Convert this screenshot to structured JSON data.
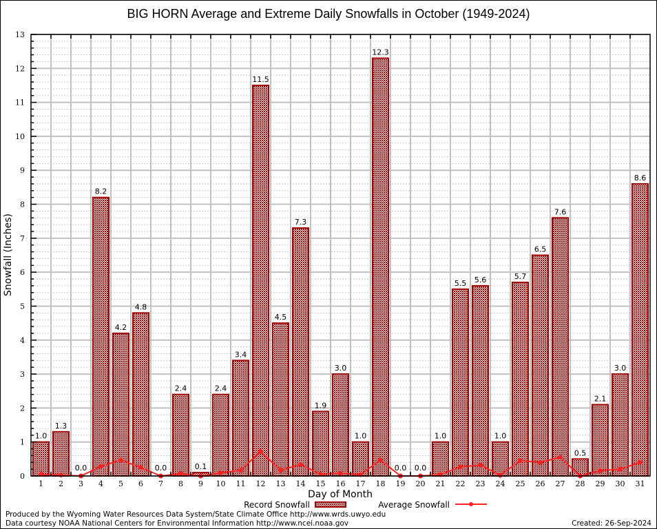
{
  "chart_data": {
    "type": "bar",
    "title": "BIG HORN Average and Extreme Daily Snowfalls in October (1949-2024)",
    "xlabel": "Day of Month",
    "ylabel": "Snowfall (Inches)",
    "ylim": [
      0,
      13
    ],
    "yticks": [
      0,
      1,
      2,
      3,
      4,
      5,
      6,
      7,
      8,
      9,
      10,
      11,
      12,
      13
    ],
    "grid": true,
    "categories": [
      "1",
      "2",
      "3",
      "4",
      "5",
      "6",
      "7",
      "8",
      "9",
      "10",
      "11",
      "12",
      "13",
      "14",
      "15",
      "16",
      "17",
      "18",
      "19",
      "20",
      "21",
      "22",
      "23",
      "24",
      "25",
      "26",
      "27",
      "28",
      "29",
      "30",
      "31"
    ],
    "series": [
      {
        "name": "Record Snowfall",
        "kind": "bar",
        "color": "#a00000",
        "values": [
          1.0,
          1.3,
          0.0,
          8.2,
          4.2,
          4.8,
          0.0,
          2.4,
          0.1,
          2.4,
          3.4,
          11.5,
          4.5,
          7.3,
          1.9,
          3.0,
          1.0,
          12.3,
          0.0,
          0.0,
          1.0,
          5.5,
          5.6,
          1.0,
          5.7,
          6.5,
          7.6,
          0.5,
          2.1,
          3.0,
          8.6
        ],
        "labels": [
          "1.0",
          "1.3",
          "0.0",
          "8.2",
          "4.2",
          "4.8",
          "0.0",
          "2.4",
          "0.1",
          "2.4",
          "3.4",
          "11.5",
          "4.5",
          "7.3",
          "1.9",
          "3.0",
          "1.0",
          "12.3",
          "0.0",
          "0.0",
          "1.0",
          "5.5",
          "5.6",
          "1.0",
          "5.7",
          "6.5",
          "7.6",
          "0.5",
          "2.1",
          "3.0",
          "8.6"
        ]
      },
      {
        "name": "Average Snowfall",
        "kind": "line",
        "color": "#ff2020",
        "values": [
          0.05,
          0.03,
          0.0,
          0.28,
          0.47,
          0.25,
          0.0,
          0.07,
          0.0,
          0.09,
          0.17,
          0.72,
          0.17,
          0.34,
          0.05,
          0.08,
          0.04,
          0.47,
          0.0,
          0.0,
          0.04,
          0.27,
          0.32,
          0.02,
          0.45,
          0.4,
          0.55,
          0.0,
          0.16,
          0.2,
          0.4
        ]
      }
    ],
    "legend": {
      "placement": "bottom-center",
      "entries": [
        "Record Snowfall",
        "Average Snowfall"
      ]
    }
  },
  "footer": {
    "produced_by": "Produced by the Wyoming Water Resources Data System/State Climate Office http://www.wrds.uwyo.edu",
    "data_courtesy": "Data courtesy NOAA National Centers for Environmental Information http://www.ncei.noaa.gov",
    "created": "Created:  26-Sep-2024"
  }
}
